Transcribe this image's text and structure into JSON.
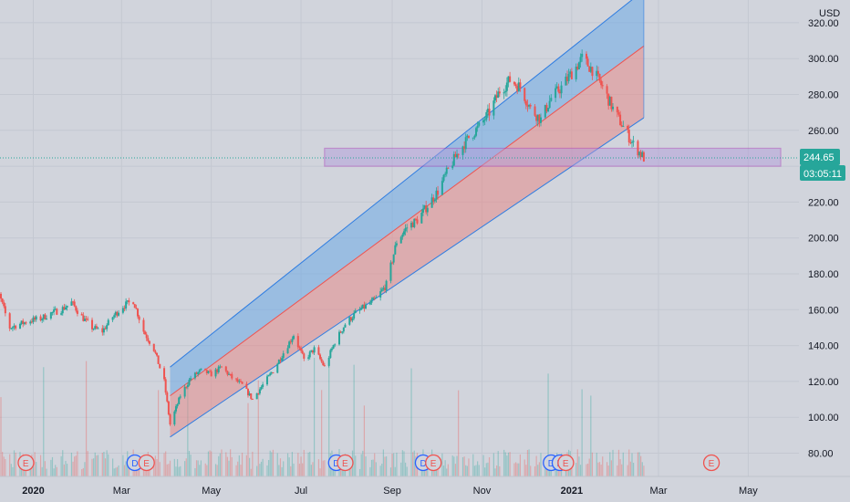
{
  "chart_data": {
    "type": "candlestick",
    "currency": "USD",
    "y_ticks": [
      80,
      100,
      120,
      140,
      160,
      180,
      200,
      220,
      240,
      260,
      280,
      300,
      320
    ],
    "y_tick_labels": [
      "80.00",
      "100.00",
      "120.00",
      "140.00",
      "160.00",
      "180.00",
      "200.00",
      "220.00",
      "",
      "260.00",
      "280.00",
      "300.00",
      "320.00"
    ],
    "x_ticks": [
      {
        "date": "2020-01-01",
        "label": "2020",
        "bold": true
      },
      {
        "date": "2020-03-01",
        "label": "Mar",
        "bold": false
      },
      {
        "date": "2020-05-01",
        "label": "May",
        "bold": false
      },
      {
        "date": "2020-07-01",
        "label": "Jul",
        "bold": false
      },
      {
        "date": "2020-09-01",
        "label": "Sep",
        "bold": false
      },
      {
        "date": "2020-11-01",
        "label": "Nov",
        "bold": false
      },
      {
        "date": "2021-01-01",
        "label": "2021",
        "bold": true
      },
      {
        "date": "2021-03-01",
        "label": "Mar",
        "bold": false
      },
      {
        "date": "2021-05-01",
        "label": "May",
        "bold": false
      }
    ],
    "last_price": {
      "value": 244.65,
      "label": "244.65"
    },
    "countdown": "03:05:11",
    "price_path": [
      [
        "2019-12-02",
        162
      ],
      [
        "2019-12-09",
        168
      ],
      [
        "2019-12-16",
        150
      ],
      [
        "2019-12-23",
        152
      ],
      [
        "2019-12-30",
        154
      ],
      [
        "2020-01-06",
        155
      ],
      [
        "2020-01-13",
        158
      ],
      [
        "2020-01-20",
        160
      ],
      [
        "2020-01-27",
        164
      ],
      [
        "2020-02-03",
        156
      ],
      [
        "2020-02-10",
        150
      ],
      [
        "2020-02-17",
        148
      ],
      [
        "2020-02-24",
        156
      ],
      [
        "2020-03-02",
        162
      ],
      [
        "2020-03-09",
        165
      ],
      [
        "2020-03-16",
        148
      ],
      [
        "2020-03-23",
        138
      ],
      [
        "2020-03-30",
        120
      ],
      [
        "2020-04-03",
        96
      ],
      [
        "2020-04-10",
        112
      ],
      [
        "2020-04-17",
        122
      ],
      [
        "2020-04-24",
        126
      ],
      [
        "2020-05-01",
        124
      ],
      [
        "2020-05-08",
        128
      ],
      [
        "2020-05-15",
        122
      ],
      [
        "2020-05-22",
        118
      ],
      [
        "2020-05-29",
        110
      ],
      [
        "2020-06-05",
        118
      ],
      [
        "2020-06-12",
        126
      ],
      [
        "2020-06-19",
        136
      ],
      [
        "2020-06-26",
        146
      ],
      [
        "2020-07-03",
        132
      ],
      [
        "2020-07-10",
        138
      ],
      [
        "2020-07-17",
        128
      ],
      [
        "2020-07-24",
        142
      ],
      [
        "2020-07-31",
        152
      ],
      [
        "2020-08-07",
        158
      ],
      [
        "2020-08-14",
        162
      ],
      [
        "2020-08-21",
        166
      ],
      [
        "2020-08-28",
        174
      ],
      [
        "2020-09-04",
        198
      ],
      [
        "2020-09-11",
        206
      ],
      [
        "2020-09-18",
        210
      ],
      [
        "2020-09-25",
        218
      ],
      [
        "2020-10-02",
        226
      ],
      [
        "2020-10-09",
        238
      ],
      [
        "2020-10-16",
        248
      ],
      [
        "2020-10-23",
        256
      ],
      [
        "2020-10-30",
        262
      ],
      [
        "2020-11-06",
        270
      ],
      [
        "2020-11-13",
        282
      ],
      [
        "2020-11-20",
        288
      ],
      [
        "2020-11-27",
        284
      ],
      [
        "2020-12-04",
        272
      ],
      [
        "2020-12-11",
        266
      ],
      [
        "2020-12-18",
        278
      ],
      [
        "2020-12-25",
        284
      ],
      [
        "2021-01-01",
        292
      ],
      [
        "2021-01-08",
        300
      ],
      [
        "2021-01-15",
        294
      ],
      [
        "2021-01-22",
        284
      ],
      [
        "2021-01-29",
        272
      ],
      [
        "2021-02-05",
        262
      ],
      [
        "2021-02-12",
        252
      ],
      [
        "2021-02-19",
        244.65
      ]
    ],
    "volume_bars_count": 120,
    "channel": {
      "start": "2020-04-03",
      "end": "2021-02-19",
      "upper_start": 128,
      "upper_end": 338,
      "mid_start": 112,
      "mid_end": 307,
      "lower_start": 89,
      "lower_end": 267
    },
    "zone": {
      "top": 250,
      "bottom": 240,
      "start": "2020-07-17",
      "end": "2021-05-24"
    },
    "events": [
      {
        "date": "2019-12-27",
        "kind": "E"
      },
      {
        "date": "2020-03-10",
        "kind": "D"
      },
      {
        "date": "2020-03-18",
        "kind": "E"
      },
      {
        "date": "2020-07-25",
        "kind": "D"
      },
      {
        "date": "2020-07-31",
        "kind": "E"
      },
      {
        "date": "2020-09-22",
        "kind": "D"
      },
      {
        "date": "2020-09-29",
        "kind": "E"
      },
      {
        "date": "2020-12-18",
        "kind": "D"
      },
      {
        "date": "2020-12-24",
        "kind": "D"
      },
      {
        "date": "2020-12-28",
        "kind": "E"
      },
      {
        "date": "2021-04-06",
        "kind": "E"
      }
    ],
    "colors": {
      "up": "#26a69a",
      "down": "#ef5350",
      "channel_upper_fill": "#6eaae6",
      "channel_lower_fill": "#e58b8b",
      "channel_line": "#2f7de1",
      "zone_fill": "#b39ddb",
      "zone_line": "#ab47bc",
      "last_price_bg": "#26a69a",
      "background": "#d1d4dc",
      "event_E": "#ef5350",
      "event_D": "#2962ff"
    }
  }
}
